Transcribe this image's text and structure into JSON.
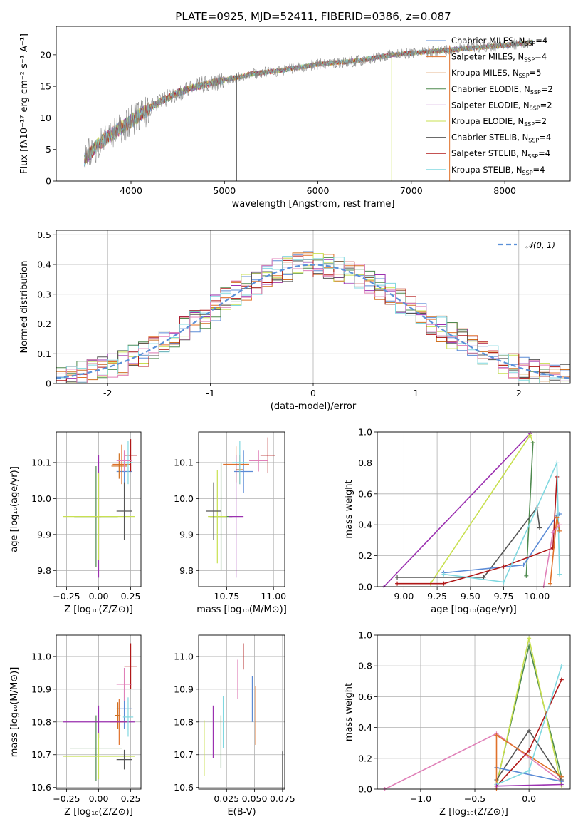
{
  "title": "PLATE=0925, MJD=52411, FIBERID=0386, z=0.087",
  "colors": {
    "Chabrier MILES": "#5b8bd6",
    "Salpeter MILES": "#e0712a",
    "Kroupa MILES": "#d07020",
    "Chabrier ELODIE": "#4f8a4f",
    "Salpeter ELODIE": "#9b30b0",
    "Kroupa ELODIE": "#c8e050",
    "Chabrier STELIB": "#555555",
    "Salpeter STELIB": "#b01818",
    "Kroupa STELIB": "#80d8e0",
    "Pink": "#e080b8"
  },
  "chart_data": [
    {
      "id": "spectrum",
      "type": "line",
      "title": "PLATE=0925, MJD=52411, FIBERID=0386, z=0.087",
      "xlabel": "wavelength [Angstrom, rest frame]",
      "ylabel": "Flux [fλ10⁻¹⁷ erg cm⁻² s⁻¹ A⁻¹]",
      "xlim": [
        3200,
        8700
      ],
      "ylim": [
        0,
        24.5
      ],
      "xticks": [
        4000,
        5000,
        6000,
        7000,
        8000
      ],
      "yticks": [
        0,
        5,
        10,
        15,
        20
      ],
      "grid": false,
      "legend_position": "top-right",
      "legend": [
        {
          "label": "Chabrier MILES, N",
          "sub": "SSP",
          "tail": "=4",
          "color": "#5b8bd6"
        },
        {
          "label": "Salpeter MILES, N",
          "sub": "SSP",
          "tail": "=4",
          "color": "#e0712a"
        },
        {
          "label": "Kroupa MILES, N",
          "sub": "SSP",
          "tail": "=5",
          "color": "#d07020"
        },
        {
          "label": "Chabrier ELODIE, N",
          "sub": "SSP",
          "tail": "=2",
          "color": "#4f8a4f"
        },
        {
          "label": "Salpeter ELODIE, N",
          "sub": "SSP",
          "tail": "=2",
          "color": "#9b30b0"
        },
        {
          "label": "Kroupa ELODIE, N",
          "sub": "SSP",
          "tail": "=2",
          "color": "#c8e050"
        },
        {
          "label": "Chabrier STELIB, N",
          "sub": "SSP",
          "tail": "=4",
          "color": "#555555"
        },
        {
          "label": "Salpeter STELIB, N",
          "sub": "SSP",
          "tail": "=4",
          "color": "#b01818"
        },
        {
          "label": "Kroupa STELIB, N",
          "sub": "SSP",
          "tail": "=4",
          "color": "#80d8e0"
        }
      ],
      "continuum": {
        "x": [
          3500,
          3700,
          3900,
          4100,
          4300,
          4500,
          4700,
          5000,
          5300,
          5600,
          6000,
          6400,
          6800,
          7200,
          7600,
          8000,
          8300
        ],
        "y": [
          3.5,
          6.5,
          8.5,
          10.5,
          12.5,
          14,
          15,
          16,
          17,
          17.5,
          18.5,
          19,
          20,
          20.5,
          21,
          21.5,
          22
        ]
      },
      "spikes": [
        {
          "x": 5130,
          "y": [
            0,
            17
          ]
        },
        {
          "x": 6790,
          "y": [
            0,
            19.5
          ]
        },
        {
          "x": 7410,
          "y": [
            0,
            21.5
          ]
        }
      ]
    },
    {
      "id": "residuals",
      "type": "bar",
      "xlabel": "(data-model)/error",
      "ylabel": "Normed distribution",
      "xlim": [
        -2.5,
        2.5
      ],
      "ylim": [
        0,
        0.515
      ],
      "xticks": [
        -2,
        -1,
        0,
        1,
        2
      ],
      "yticks": [
        0.0,
        0.1,
        0.2,
        0.3,
        0.4,
        0.5
      ],
      "grid": true,
      "legend_position": "top-right",
      "legend": [
        {
          "label": "𝒩(0, 1)",
          "style": "dashed",
          "color": "#5a90d8"
        }
      ],
      "bin_width": 0.1,
      "reference": {
        "name": "𝒩(0, 1)",
        "mean": 0,
        "sigma": 1
      }
    },
    {
      "id": "age-vs-Z",
      "type": "scatter",
      "xlabel": "Z [log₁₀(Z/Z⊙)]",
      "ylabel": "age  [log₁₀(age/yr)]",
      "xlim": [
        -0.33,
        0.33
      ],
      "ylim": [
        9.755,
        10.185
      ],
      "xticks": [
        -0.25,
        0.0,
        0.25
      ],
      "xticklabels": [
        "−0.25",
        "0.00",
        "0.25"
      ],
      "yticks": [
        9.8,
        9.9,
        10.0,
        10.1
      ],
      "yticklabels": [
        "9.8",
        "9.9",
        "10.0",
        "10.1"
      ],
      "grid": true,
      "points": [
        {
          "c": "#5b8bd6",
          "x": 0.2,
          "xerr": 0.06,
          "y": 10.075,
          "yerr": 0.05
        },
        {
          "c": "#e0712a",
          "x": 0.18,
          "xerr": 0.07,
          "y": 10.095,
          "yerr": 0.055
        },
        {
          "c": "#d07020",
          "x": 0.16,
          "xerr": 0.06,
          "y": 10.09,
          "yerr": 0.035
        },
        {
          "c": "#4f8a4f",
          "x": -0.02,
          "xerr": 0.17,
          "y": 9.95,
          "yerr": 0.14
        },
        {
          "c": "#9b30b0",
          "x": 0.0,
          "xerr": 0.02,
          "y": 9.95,
          "yerr": 0.17
        },
        {
          "c": "#c8e050",
          "x": 0.0,
          "xerr": 0.28,
          "y": 9.95,
          "yerr": 0.12
        },
        {
          "c": "#555555",
          "x": 0.2,
          "xerr": 0.06,
          "y": 9.965,
          "yerr": 0.08
        },
        {
          "c": "#b01818",
          "x": 0.25,
          "xerr": 0.05,
          "y": 10.12,
          "yerr": 0.045
        },
        {
          "c": "#80d8e0",
          "x": 0.23,
          "xerr": 0.04,
          "y": 10.1,
          "yerr": 0.06
        },
        {
          "c": "#e080b8",
          "x": 0.2,
          "xerr": 0.06,
          "y": 10.105,
          "yerr": 0.03
        }
      ]
    },
    {
      "id": "age-vs-mass",
      "type": "scatter",
      "xlabel": "mass [log₁₀(M/M⊙)]",
      "ylabel": "",
      "xlim": [
        10.6,
        11.06
      ],
      "ylim": [
        9.755,
        10.185
      ],
      "xticks": [
        10.75,
        11.0
      ],
      "xticklabels": [
        "10.75",
        "11.00"
      ],
      "yticks": [
        9.8,
        9.9,
        10.0,
        10.1
      ],
      "yticklabels": [
        "9.8",
        "9.9",
        "10.0",
        "10.1"
      ],
      "grid": true,
      "points": [
        {
          "c": "#5b8bd6",
          "x": 10.84,
          "xerr": 0.05,
          "y": 10.075,
          "yerr": 0.06
        },
        {
          "c": "#e0712a",
          "x": 10.8,
          "xerr": 0.07,
          "y": 10.095,
          "yerr": 0.05
        },
        {
          "c": "#d07020",
          "x": 10.82,
          "xerr": 0.02,
          "y": 10.08,
          "yerr": 0.04
        },
        {
          "c": "#4f8a4f",
          "x": 10.72,
          "xerr": 0.06,
          "y": 9.95,
          "yerr": 0.15
        },
        {
          "c": "#9b30b0",
          "x": 10.8,
          "xerr": 0.04,
          "y": 9.95,
          "yerr": 0.17
        },
        {
          "c": "#c8e050",
          "x": 10.7,
          "xerr": 0.05,
          "y": 9.95,
          "yerr": 0.13
        },
        {
          "c": "#555555",
          "x": 10.68,
          "xerr": 0.04,
          "y": 9.965,
          "yerr": 0.08
        },
        {
          "c": "#b01818",
          "x": 10.97,
          "xerr": 0.04,
          "y": 10.12,
          "yerr": 0.05
        },
        {
          "c": "#80d8e0",
          "x": 10.82,
          "xerr": 0.04,
          "y": 10.1,
          "yerr": 0.06
        },
        {
          "c": "#e080b8",
          "x": 10.92,
          "xerr": 0.05,
          "y": 10.105,
          "yerr": 0.03
        }
      ]
    },
    {
      "id": "mass-weight-vs-age",
      "type": "line",
      "xlabel": "age  [log₁₀(age/yr)]",
      "ylabel": "mass weight",
      "xlim": [
        8.8,
        10.25
      ],
      "ylim": [
        0,
        1.0
      ],
      "xticks": [
        9.0,
        9.25,
        9.5,
        9.75,
        10.0
      ],
      "xticklabels": [
        "9.00",
        "9.25",
        "9.50",
        "9.75",
        "10.00"
      ],
      "yticks": [
        0,
        0.2,
        0.4,
        0.6,
        0.8,
        1.0
      ],
      "yticklabels": [
        "0.0",
        "0.2",
        "0.4",
        "0.6",
        "0.8",
        "1.0"
      ],
      "grid": true,
      "series": [
        {
          "c": "#9b30b0",
          "x": [
            8.85,
            9.95
          ],
          "y": [
            0.0,
            0.99
          ]
        },
        {
          "c": "#c8e050",
          "x": [
            9.2,
            9.95,
            9.97
          ],
          "y": [
            0.02,
            0.98,
            0.93
          ]
        },
        {
          "c": "#4f8a4f",
          "x": [
            9.92,
            9.97
          ],
          "y": [
            0.07,
            0.93
          ]
        },
        {
          "c": "#555555",
          "x": [
            8.95,
            9.6,
            10.0,
            10.02
          ],
          "y": [
            0.06,
            0.06,
            0.51,
            0.38
          ]
        },
        {
          "c": "#5b8bd6",
          "x": [
            9.3,
            9.9,
            10.15,
            10.17
          ],
          "y": [
            0.09,
            0.14,
            0.46,
            0.47
          ]
        },
        {
          "c": "#b01818",
          "x": [
            8.95,
            9.3,
            9.75,
            10.12,
            10.15
          ],
          "y": [
            0.02,
            0.02,
            0.13,
            0.25,
            0.71
          ]
        },
        {
          "c": "#80d8e0",
          "x": [
            9.3,
            9.75,
            10.15,
            10.17
          ],
          "y": [
            0.08,
            0.03,
            0.8,
            0.08
          ]
        },
        {
          "c": "#e0712a",
          "x": [
            10.1,
            10.15,
            10.17
          ],
          "y": [
            0.02,
            0.45,
            0.36
          ]
        },
        {
          "c": "#e080b8",
          "x": [
            10.05,
            10.12,
            10.17
          ],
          "y": [
            0.0,
            0.35,
            0.4
          ]
        }
      ]
    },
    {
      "id": "mass-vs-Z",
      "type": "scatter",
      "xlabel": "Z [log₁₀(Z/Z⊙)]",
      "ylabel": "mass [log₁₀(M/M⊙)]",
      "xlim": [
        -0.33,
        0.33
      ],
      "ylim": [
        10.595,
        11.065
      ],
      "xticks": [
        -0.25,
        0.0,
        0.25
      ],
      "xticklabels": [
        "−0.25",
        "0.00",
        "0.25"
      ],
      "yticks": [
        10.6,
        10.7,
        10.8,
        10.9,
        11.0
      ],
      "yticklabels": [
        "10.6",
        "10.7",
        "10.8",
        "10.9",
        "11.0"
      ],
      "grid": true,
      "points": [
        {
          "c": "#5b8bd6",
          "x": 0.2,
          "xerr": 0.06,
          "y": 10.84,
          "yerr": 0.06
        },
        {
          "c": "#e0712a",
          "x": 0.16,
          "xerr": 0.07,
          "y": 10.8,
          "yerr": 0.07
        },
        {
          "c": "#d07020",
          "x": 0.15,
          "xerr": 0.02,
          "y": 10.82,
          "yerr": 0.04
        },
        {
          "c": "#4f8a4f",
          "x": -0.02,
          "xerr": 0.2,
          "y": 10.72,
          "yerr": 0.1
        },
        {
          "c": "#9b30b0",
          "x": 0.0,
          "xerr": 0.28,
          "y": 10.8,
          "yerr": 0.05
        },
        {
          "c": "#c8e050",
          "x": 0.0,
          "xerr": 0.28,
          "y": 10.695,
          "yerr": 0.07
        },
        {
          "c": "#555555",
          "x": 0.2,
          "xerr": 0.06,
          "y": 10.685,
          "yerr": 0.03
        },
        {
          "c": "#b01818",
          "x": 0.25,
          "xerr": 0.05,
          "y": 10.97,
          "yerr": 0.07
        },
        {
          "c": "#80d8e0",
          "x": 0.23,
          "xerr": 0.04,
          "y": 10.815,
          "yerr": 0.06
        },
        {
          "c": "#e080b8",
          "x": 0.2,
          "xerr": 0.06,
          "y": 10.915,
          "yerr": 0.05
        }
      ]
    },
    {
      "id": "mass-vs-ebv",
      "type": "scatter",
      "xlabel": "E(B-V)",
      "ylabel": "",
      "xlim": [
        0.0,
        0.077
      ],
      "ylim": [
        10.595,
        11.065
      ],
      "xticks": [
        0.025,
        0.05,
        0.075
      ],
      "xticklabels": [
        "0.025",
        "0.050",
        "0.075"
      ],
      "yticks": [
        10.6,
        10.7,
        10.8,
        10.9,
        11.0
      ],
      "yticklabels": [
        "10.6",
        "10.7",
        "10.8",
        "10.9",
        "11.0"
      ],
      "grid": true,
      "points": [
        {
          "c": "#c8e050",
          "x": 0.005,
          "xerr": 0,
          "y": 10.72,
          "yerr": 0.085
        },
        {
          "c": "#9b30b0",
          "x": 0.013,
          "xerr": 0,
          "y": 10.77,
          "yerr": 0.08
        },
        {
          "c": "#4f8a4f",
          "x": 0.02,
          "xerr": 0,
          "y": 10.74,
          "yerr": 0.08
        },
        {
          "c": "#80d8e0",
          "x": 0.022,
          "xerr": 0,
          "y": 10.8,
          "yerr": 0.08
        },
        {
          "c": "#e080b8",
          "x": 0.035,
          "xerr": 0,
          "y": 10.93,
          "yerr": 0.06
        },
        {
          "c": "#b01818",
          "x": 0.04,
          "xerr": 0,
          "y": 11.0,
          "yerr": 0.04
        },
        {
          "c": "#5b8bd6",
          "x": 0.048,
          "xerr": 0,
          "y": 10.87,
          "yerr": 0.07
        },
        {
          "c": "#e0712a",
          "x": 0.051,
          "xerr": 0,
          "y": 10.82,
          "yerr": 0.09
        },
        {
          "c": "#555555",
          "x": 0.075,
          "xerr": 0,
          "y": 10.65,
          "yerr": 0.06
        }
      ]
    },
    {
      "id": "mass-weight-vs-Z",
      "type": "line",
      "xlabel": "Z [log₁₀(Z/Z⊙)]",
      "ylabel": "mass weight",
      "xlim": [
        -1.4,
        0.38
      ],
      "ylim": [
        0,
        1.0
      ],
      "xticks": [
        -1.0,
        -0.5,
        0.0
      ],
      "xticklabels": [
        "−1.0",
        "−0.5",
        "0.0"
      ],
      "yticks": [
        0,
        0.2,
        0.4,
        0.6,
        0.8,
        1.0
      ],
      "yticklabels": [
        "0.0",
        "0.2",
        "0.4",
        "0.6",
        "0.8",
        "1.0"
      ],
      "grid": true,
      "series": [
        {
          "c": "#e080b8",
          "x": [
            -1.33,
            -0.3,
            0.3
          ],
          "y": [
            0.0,
            0.36,
            0.05
          ]
        },
        {
          "c": "#4f8a4f",
          "x": [
            -0.3,
            0.0,
            0.3
          ],
          "y": [
            0.03,
            0.93,
            0.08
          ]
        },
        {
          "c": "#c8e050",
          "x": [
            -0.3,
            0.0,
            0.3
          ],
          "y": [
            0.02,
            0.98,
            0.02
          ]
        },
        {
          "c": "#555555",
          "x": [
            -0.3,
            0.0,
            0.3
          ],
          "y": [
            0.06,
            0.38,
            0.06
          ]
        },
        {
          "c": "#5b8bd6",
          "x": [
            -0.3,
            0.3
          ],
          "y": [
            0.14,
            0.05
          ]
        },
        {
          "c": "#e0712a",
          "x": [
            -0.3,
            -0.3,
            0.3
          ],
          "y": [
            0.0,
            0.35,
            0.08
          ]
        },
        {
          "c": "#b01818",
          "x": [
            -0.3,
            0.0,
            0.3
          ],
          "y": [
            0.02,
            0.25,
            0.71
          ]
        },
        {
          "c": "#80d8e0",
          "x": [
            -0.3,
            0.0,
            0.3
          ],
          "y": [
            0.03,
            0.12,
            0.8
          ]
        },
        {
          "c": "#9b30b0",
          "x": [
            -0.3,
            0.3
          ],
          "y": [
            0.02,
            0.03
          ]
        }
      ]
    }
  ]
}
